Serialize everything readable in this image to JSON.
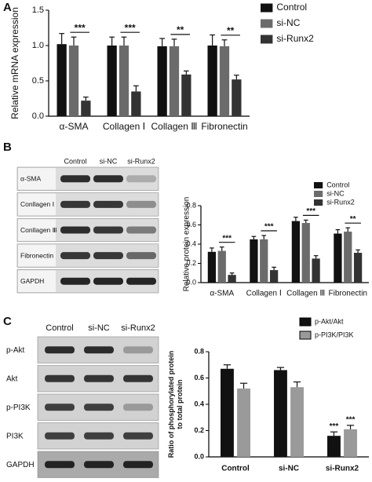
{
  "panel_labels": [
    "A",
    "B",
    "C"
  ],
  "chart_data": [
    {
      "type": "bar",
      "ylabel": [
        "Relative mRNA expression"
      ],
      "categories": [
        "α-SMA",
        "Collagen Ⅰ",
        "Collagen Ⅲ",
        "Fibronectin"
      ],
      "series": [
        {
          "name": "Control",
          "color": "#111111",
          "values": [
            1.02,
            1.0,
            0.99,
            1.0
          ],
          "errors": [
            0.15,
            0.12,
            0.11,
            0.15
          ]
        },
        {
          "name": "si-NC",
          "color": "#6b6b6b",
          "values": [
            1.0,
            1.0,
            0.99,
            0.99
          ],
          "errors": [
            0.12,
            0.12,
            0.1,
            0.09
          ]
        },
        {
          "name": "si-Runx2",
          "color": "#333333",
          "values": [
            0.22,
            0.35,
            0.59,
            0.52
          ],
          "errors": [
            0.05,
            0.08,
            0.05,
            0.06
          ]
        }
      ],
      "annotations": [
        "***",
        "***",
        "**",
        "**"
      ],
      "ylim": [
        0,
        1.5
      ],
      "yticks": [
        {
          "value": 0,
          "label": "0.0"
        },
        0.5,
        {
          "value": 1,
          "label": "1.0"
        },
        1.5
      ],
      "legend": "right"
    },
    {
      "type": "bar",
      "ylabel": [
        "Relative protein expression"
      ],
      "categories": [
        "α-SMA",
        "Collagen Ⅰ",
        "Collagen Ⅲ",
        "Fibronectin"
      ],
      "series": [
        {
          "name": "Control",
          "color": "#111111",
          "values": [
            0.32,
            0.45,
            0.64,
            0.51
          ],
          "errors": [
            0.04,
            0.03,
            0.04,
            0.04
          ]
        },
        {
          "name": "si-NC",
          "color": "#6b6b6b",
          "values": [
            0.33,
            0.45,
            0.62,
            0.53
          ],
          "errors": [
            0.04,
            0.04,
            0.03,
            0.04
          ]
        },
        {
          "name": "si-Runx2",
          "color": "#333333",
          "values": [
            0.08,
            0.13,
            0.25,
            0.31
          ],
          "errors": [
            0.02,
            0.03,
            0.03,
            0.03
          ]
        }
      ],
      "annotations": [
        "***",
        "***",
        "***",
        "**"
      ],
      "ylim": [
        0,
        0.8
      ],
      "yticks": [
        {
          "value": 0,
          "label": "0.0"
        },
        0.2,
        0.4,
        0.6,
        0.8
      ],
      "legend": "upper right"
    },
    {
      "type": "bar",
      "ylabel": [
        "Ratio of phosphorylated protein",
        "to total protein"
      ],
      "categories": [
        "Control",
        "si-NC",
        "si-Runx2"
      ],
      "series": [
        {
          "name": "p-Akt/Akt",
          "color": "#111111",
          "values": [
            0.67,
            0.66,
            0.16
          ],
          "errors": [
            0.03,
            0.02,
            0.03
          ],
          "annotations": [
            null,
            null,
            "***"
          ]
        },
        {
          "name": "p-PI3K/PI3K",
          "color": "#9a9a9a",
          "values": [
            0.52,
            0.53,
            0.21
          ],
          "errors": [
            0.04,
            0.04,
            0.03
          ],
          "annotations": [
            null,
            null,
            "***"
          ]
        }
      ],
      "ylim": [
        0,
        0.8
      ],
      "yticks": [
        {
          "value": 0,
          "label": "0.0"
        },
        0.2,
        0.4,
        0.6,
        0.8
      ],
      "legend": "top"
    }
  ],
  "blots": [
    {
      "columns": [
        "Control",
        "si-NC",
        "si-Runx2"
      ],
      "rows": [
        "α-SMA",
        "Conllagen Ⅰ",
        "Conllagen Ⅲ",
        "Fibronectin",
        "GAPDH"
      ]
    },
    {
      "columns": [
        "Control",
        "si-NC",
        "si-Runx2"
      ],
      "rows": [
        "p-Akt",
        "Akt",
        "p-PI3K",
        "PI3K",
        "GAPDH"
      ]
    }
  ]
}
